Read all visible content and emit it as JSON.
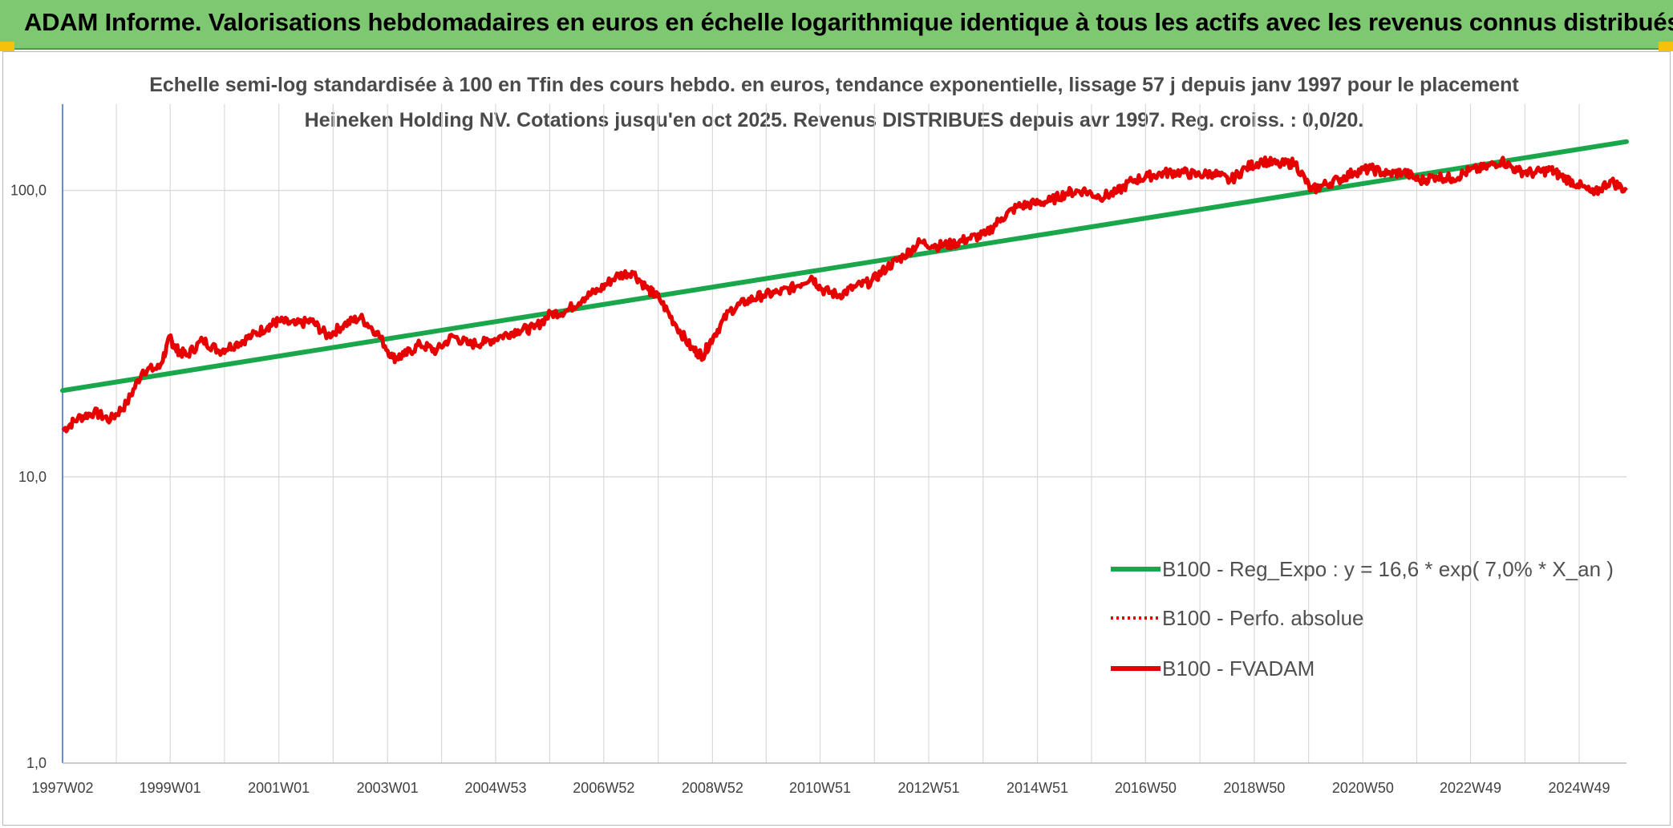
{
  "header": {
    "title": "ADAM Informe. Valorisations hebdomadaires en euros en échelle logarithmique identique à tous les actifs avec les revenus connus distribués"
  },
  "colors": {
    "banner": "#7dc870",
    "trend": "#1aa64b",
    "fvadam": "#e60000",
    "perfo": "#e60000",
    "axis": "#4472c4",
    "grid": "#d9d9d9"
  },
  "chart_data": {
    "type": "line",
    "title": "Echelle semi-log standardisée à 100 en Tfin des cours hebdo. en euros, tendance exponentielle, lissage 57 j depuis janv 1997 pour le placement Heineken Holding NV. Cotations jusqu'en oct 2025. Revenus DISTRIBUES depuis avr 1997. Reg. croiss. : 0,0/20.",
    "y_scale": "log",
    "ylim": [
      1,
      200
    ],
    "y_ticks": [
      {
        "value": 1,
        "label": "1,0"
      },
      {
        "value": 10,
        "label": "10,0"
      },
      {
        "value": 100,
        "label": "100,0"
      }
    ],
    "x_range": [
      1997.02,
      2025.8
    ],
    "x_ticks": [
      {
        "value": 1997.02,
        "label": "1997W02"
      },
      {
        "value": 1999.0,
        "label": "1999W01"
      },
      {
        "value": 2001.0,
        "label": "2001W01"
      },
      {
        "value": 2003.0,
        "label": "2003W01"
      },
      {
        "value": 2004.99,
        "label": "2004W53"
      },
      {
        "value": 2006.98,
        "label": "2006W52"
      },
      {
        "value": 2008.98,
        "label": "2008W52"
      },
      {
        "value": 2010.96,
        "label": "2010W51"
      },
      {
        "value": 2012.96,
        "label": "2012W51"
      },
      {
        "value": 2014.96,
        "label": "2014W51"
      },
      {
        "value": 2016.95,
        "label": "2016W50"
      },
      {
        "value": 2018.95,
        "label": "2018W50"
      },
      {
        "value": 2020.95,
        "label": "2020W50"
      },
      {
        "value": 2022.93,
        "label": "2022W49"
      },
      {
        "value": 2024.93,
        "label": "2024W49"
      }
    ],
    "legend_position": "bottom-right",
    "series": [
      {
        "name": "B100 - Reg_Expo : y = 16,6 * exp( 7,0% * X_an )",
        "style": "solid",
        "color": "#1aa64b",
        "x": [
          1997.02,
          2025.8
        ],
        "y": [
          20.0,
          148.0
        ]
      },
      {
        "name": "B100 - Perfo. absolue",
        "style": "dotted",
        "color": "#e60000",
        "x": [],
        "y": []
      },
      {
        "name": "B100 - FVADAM",
        "style": "solid",
        "color": "#e60000",
        "x": [
          1997.02,
          1997.3,
          1997.6,
          1997.9,
          1998.2,
          1998.5,
          1998.8,
          1999.0,
          1999.1,
          1999.3,
          1999.6,
          1999.9,
          2000.2,
          2000.5,
          2000.8,
          2001.0,
          2001.3,
          2001.6,
          2001.9,
          2002.2,
          2002.5,
          2002.8,
          2003.1,
          2003.3,
          2003.6,
          2003.9,
          2004.2,
          2004.5,
          2004.8,
          2005.1,
          2005.4,
          2005.7,
          2006.0,
          2006.3,
          2006.6,
          2006.9,
          2007.2,
          2007.5,
          2007.8,
          2008.0,
          2008.3,
          2008.6,
          2008.8,
          2009.0,
          2009.3,
          2009.6,
          2009.9,
          2010.2,
          2010.5,
          2010.8,
          2011.0,
          2011.3,
          2011.6,
          2011.9,
          2012.2,
          2012.5,
          2012.8,
          2013.1,
          2013.4,
          2013.7,
          2014.0,
          2014.3,
          2014.6,
          2014.9,
          2015.2,
          2015.5,
          2015.8,
          2016.1,
          2016.4,
          2016.7,
          2017.0,
          2017.3,
          2017.6,
          2017.9,
          2018.2,
          2018.5,
          2018.8,
          2019.1,
          2019.4,
          2019.7,
          2020.0,
          2020.2,
          2020.5,
          2020.8,
          2021.1,
          2021.4,
          2021.7,
          2022.0,
          2022.3,
          2022.6,
          2022.9,
          2023.2,
          2023.5,
          2023.8,
          2024.1,
          2024.4,
          2024.6,
          2024.9,
          2025.2,
          2025.5,
          2025.8
        ],
        "y": [
          14.5,
          16.0,
          16.8,
          15.8,
          18.0,
          23.5,
          24.0,
          30.5,
          28.0,
          26.5,
          30.0,
          27.5,
          29.0,
          31.0,
          33.5,
          35.0,
          34.0,
          35.0,
          31.0,
          34.0,
          36.0,
          32.0,
          26.0,
          26.5,
          29.0,
          27.5,
          31.0,
          29.0,
          29.5,
          31.0,
          32.5,
          33.0,
          37.0,
          38.0,
          42.0,
          45.0,
          50.0,
          52.0,
          45.0,
          42.0,
          34.0,
          28.0,
          26.5,
          31.0,
          38.0,
          41.0,
          43.0,
          44.0,
          46.0,
          50.0,
          45.0,
          43.0,
          46.0,
          48.0,
          54.0,
          59.0,
          66.0,
          64.0,
          65.0,
          68.0,
          70.0,
          80.0,
          88.0,
          90.0,
          92.0,
          98.0,
          100.0,
          95.0,
          98.0,
          108.0,
          112.0,
          115.0,
          116.0,
          113.0,
          115.0,
          108.0,
          120.0,
          127.0,
          123.0,
          125.0,
          100.0,
          104.0,
          109.0,
          116.0,
          119.0,
          114.0,
          116.0,
          108.0,
          112.0,
          110.0,
          117.0,
          120.0,
          127.0,
          117.0,
          115.0,
          118.0,
          112.0,
          105.0,
          97.0,
          108.0,
          100.0
        ]
      }
    ]
  }
}
